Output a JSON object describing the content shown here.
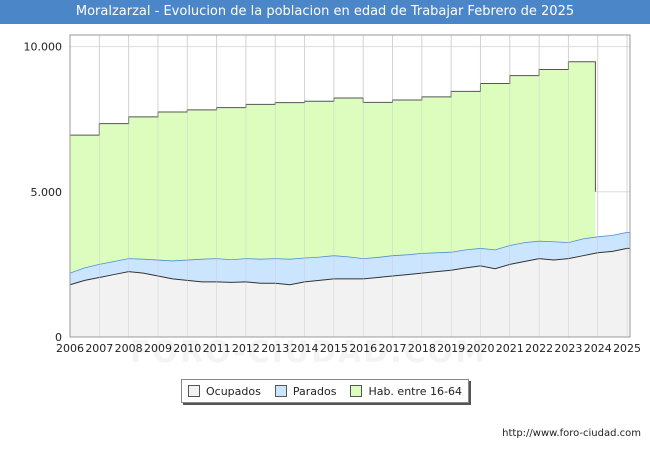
{
  "header": {
    "title": "Moralzarzal - Evolucion de la poblacion en edad de Trabajar Febrero de 2025"
  },
  "footer": {
    "source": "http://www.foro-ciudad.com",
    "watermark": "FORO-CIUDAD.COM"
  },
  "colors": {
    "ocupados": "#f2f2f2",
    "parados": "#cce5ff",
    "habitantes": "#ddfdbe",
    "line": "#333333",
    "title_bg": "#4a86c8"
  },
  "chart_data": {
    "type": "area",
    "title": "Moralzarzal - Evolucion de la poblacion en edad de Trabajar Febrero de 2025",
    "xlabel": "",
    "ylabel": "",
    "xlim": [
      2006,
      2025.1
    ],
    "ylim": [
      0,
      10400
    ],
    "x_ticks": [
      "2006",
      "2007",
      "2008",
      "2009",
      "2010",
      "2011",
      "2012",
      "2013",
      "2014",
      "2015",
      "2016",
      "2017",
      "2018",
      "2019",
      "2020",
      "2021",
      "2022",
      "2023",
      "2024",
      "2025"
    ],
    "y_ticks": [
      {
        "value": 0,
        "label": "0"
      },
      {
        "value": 5000,
        "label": "5.000"
      },
      {
        "value": 10000,
        "label": "10.000"
      }
    ],
    "grid": true,
    "legend_position": "bottom-center",
    "series": [
      {
        "name": "Hab. entre 16-64",
        "kind": "yearly-step",
        "years": [
          2006,
          2007,
          2008,
          2009,
          2010,
          2011,
          2012,
          2013,
          2014,
          2015,
          2016,
          2017,
          2018,
          2019,
          2020,
          2021,
          2022,
          2023
        ],
        "values": [
          6950,
          7350,
          7580,
          7750,
          7820,
          7900,
          8010,
          8070,
          8120,
          8230,
          8080,
          8160,
          8270,
          8460,
          8730,
          9000,
          9210,
          9480
        ],
        "last_year": 2024,
        "end_x": 2023.92
      },
      {
        "name": "Parados",
        "kind": "stacked-top",
        "x": [
          2006,
          2006.5,
          2007,
          2007.5,
          2008,
          2008.5,
          2009,
          2009.5,
          2010,
          2010.5,
          2011,
          2011.5,
          2012,
          2012.5,
          2013,
          2013.5,
          2014,
          2014.5,
          2015,
          2015.5,
          2016,
          2016.5,
          2017,
          2017.5,
          2018,
          2018.5,
          2019,
          2019.5,
          2020,
          2020.5,
          2021,
          2021.5,
          2022,
          2022.5,
          2023,
          2023.5,
          2024,
          2024.5,
          2025,
          2025.1
        ],
        "values": [
          2200,
          2380,
          2500,
          2600,
          2700,
          2680,
          2650,
          2620,
          2650,
          2680,
          2700,
          2660,
          2700,
          2680,
          2700,
          2680,
          2720,
          2750,
          2800,
          2760,
          2700,
          2740,
          2800,
          2830,
          2880,
          2900,
          2920,
          3000,
          3050,
          3000,
          3150,
          3250,
          3300,
          3280,
          3250,
          3380,
          3450,
          3500,
          3600,
          3600
        ]
      },
      {
        "name": "Ocupados",
        "kind": "line",
        "x": [
          2006,
          2006.5,
          2007,
          2007.5,
          2008,
          2008.5,
          2009,
          2009.5,
          2010,
          2010.5,
          2011,
          2011.5,
          2012,
          2012.5,
          2013,
          2013.5,
          2014,
          2014.5,
          2015,
          2015.5,
          2016,
          2016.5,
          2017,
          2017.5,
          2018,
          2018.5,
          2019,
          2019.5,
          2020,
          2020.5,
          2021,
          2021.5,
          2022,
          2022.5,
          2023,
          2023.5,
          2024,
          2024.5,
          2025,
          2025.1
        ],
        "values": [
          1800,
          1950,
          2050,
          2150,
          2250,
          2200,
          2100,
          2000,
          1950,
          1900,
          1900,
          1880,
          1900,
          1850,
          1850,
          1800,
          1900,
          1950,
          2000,
          2000,
          2000,
          2050,
          2100,
          2150,
          2200,
          2250,
          2300,
          2380,
          2450,
          2350,
          2500,
          2600,
          2700,
          2650,
          2700,
          2800,
          2900,
          2950,
          3050,
          3050
        ]
      }
    ]
  }
}
